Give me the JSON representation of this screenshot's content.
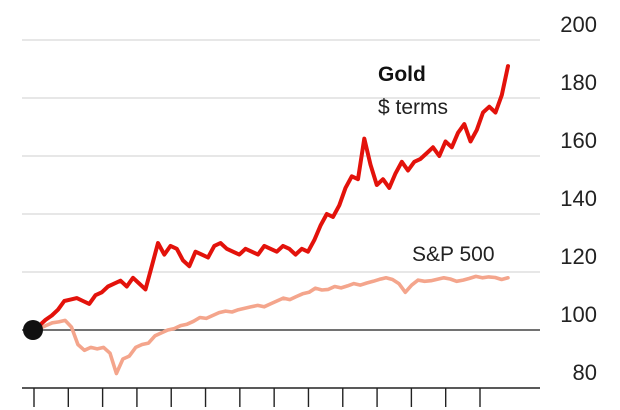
{
  "chart_data": {
    "type": "line",
    "title": "",
    "xlabel": "",
    "ylabel": "",
    "ylim": [
      80,
      200
    ],
    "y_ticks": [
      80,
      100,
      120,
      140,
      160,
      180,
      200
    ],
    "y_tick_labels": [
      "80",
      "100",
      "120",
      "140",
      "160",
      "180",
      "200"
    ],
    "baseline": 100,
    "grid": true,
    "x_tick_count": 14,
    "start_marker_value": 100,
    "colors": {
      "gold": "#e3120b",
      "sp500": "#f4a58c",
      "grid": "#cfcfcf",
      "baseline": "#444444",
      "axis": "#222222",
      "marker": "#111111"
    },
    "series": [
      {
        "name": "Gold",
        "subtitle": "$ terms",
        "key": "gold",
        "values": [
          100,
          101.5,
          103.5,
          105,
          107,
          110,
          110.5,
          111,
          110,
          109,
          112,
          113,
          115,
          116,
          117,
          115,
          118,
          116,
          114,
          122,
          130,
          126,
          129,
          128,
          124,
          122,
          127,
          126,
          125,
          129,
          130,
          128,
          127,
          126,
          128,
          127,
          126,
          129,
          128,
          127,
          129,
          128,
          126,
          128,
          127,
          131,
          136,
          140,
          139,
          143,
          149,
          153,
          152,
          166,
          157,
          150,
          152,
          149,
          154,
          158,
          155,
          158,
          159,
          161,
          163,
          160,
          165,
          163,
          168,
          171,
          165,
          169,
          175,
          177,
          175,
          181,
          191
        ]
      },
      {
        "name": "S&P 500",
        "key": "sp500",
        "values": [
          100,
          100.5,
          101.5,
          102.5,
          102.8,
          103.3,
          101,
          95,
          93,
          94,
          93.5,
          94,
          92,
          85,
          90,
          91,
          94,
          95,
          95.5,
          98,
          99,
          100,
          100.5,
          101.5,
          102,
          103,
          104.3,
          104,
          105,
          106,
          106.5,
          106.2,
          107,
          107.5,
          108,
          108.5,
          108,
          109,
          110,
          111,
          110.5,
          111.5,
          112.5,
          113,
          114.4,
          113.8,
          114,
          115,
          114.5,
          115.2,
          116,
          115.5,
          116.2,
          116.8,
          117.5,
          118,
          117.4,
          116,
          113,
          115.5,
          117.2,
          116.8,
          117,
          117.5,
          118,
          117.6,
          116.8,
          117.2,
          117.8,
          118.5,
          118,
          118.3,
          118.1,
          117.4,
          118
        ]
      }
    ]
  }
}
